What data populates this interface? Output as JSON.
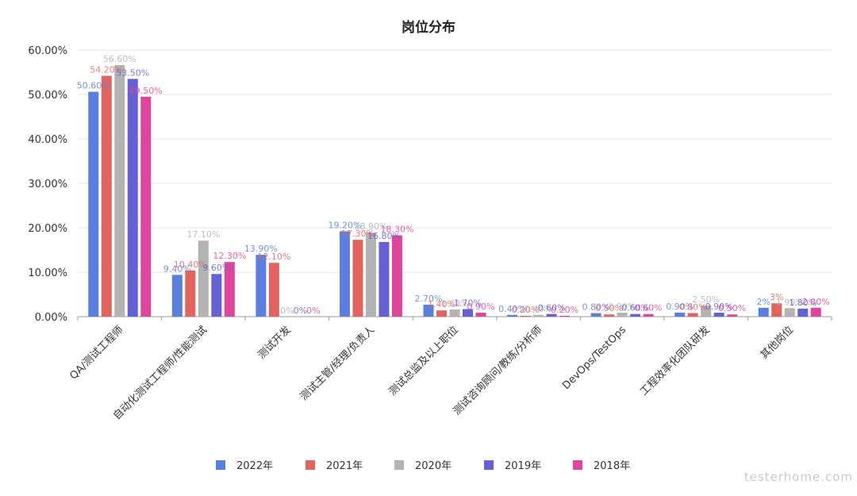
{
  "watermark": "testerhome.com",
  "chart_data": {
    "type": "bar",
    "title": "岗位分布",
    "xlabel": "",
    "ylabel": "",
    "ylim": [
      0,
      60
    ],
    "y_ticks": [
      "0.00%",
      "10.00%",
      "20.00%",
      "30.00%",
      "40.00%",
      "50.00%",
      "60.00%"
    ],
    "grid": true,
    "legend_position": "bottom",
    "categories": [
      "QA/测试工程师",
      "自动化测试工程师/性能测试",
      "测试开发",
      "测试主管/经理/负责人",
      "测试总监及以上职位",
      "测试咨询顾问/教练/分析师",
      "DevOps/TestOps",
      "工程效率化团队研发",
      "其他岗位"
    ],
    "series": [
      {
        "name": "2022年",
        "color": "#5b7fe0",
        "values": [
          50.6,
          9.4,
          13.9,
          19.2,
          2.7,
          0.4,
          0.8,
          0.9,
          2
        ],
        "labels": [
          "50.60%",
          "9.40%",
          "13.90%",
          "19.20%",
          "2.70%",
          "0.40%",
          "0.80%",
          "0.90%",
          "2%"
        ]
      },
      {
        "name": "2021年",
        "color": "#e3645f",
        "values": [
          54.2,
          10.4,
          12.1,
          17.3,
          1.4,
          0.2,
          0.5,
          0.8,
          3
        ],
        "labels": [
          "54.20%",
          "10.40%",
          "12.10%",
          "17.30%",
          "1.40%",
          "0.20%",
          "0.50%",
          "0.80%",
          "3%"
        ]
      },
      {
        "name": "2020年",
        "color": "#b3b3b3",
        "values": [
          56.6,
          17.1,
          0,
          18.9,
          1.6,
          0.4,
          0.9,
          2.5,
          1.9
        ],
        "labels": [
          "56.60%",
          "17.10%",
          "0%",
          "18.90%",
          "1.60%",
          "0.40%",
          "0.90%",
          "2.50%",
          "1.90%"
        ]
      },
      {
        "name": "2019年",
        "color": "#6560d6",
        "values": [
          53.5,
          9.6,
          0,
          16.8,
          1.7,
          0.6,
          0.6,
          0.9,
          1.8
        ],
        "labels": [
          "53.50%",
          "9.60%",
          "0%",
          "16.80%",
          "1.70%",
          "0.60%",
          "0.60%",
          "0.90%",
          "1.80%"
        ]
      },
      {
        "name": "2018年",
        "color": "#e0459e",
        "values": [
          49.5,
          12.3,
          0,
          18.3,
          0.9,
          0.2,
          0.6,
          0.5,
          2
        ],
        "labels": [
          "49.50%",
          "12.30%",
          "0%",
          "18.30%",
          "0.90%",
          "0.20%",
          "0.60%",
          "0.50%",
          "2.00%"
        ]
      }
    ]
  }
}
